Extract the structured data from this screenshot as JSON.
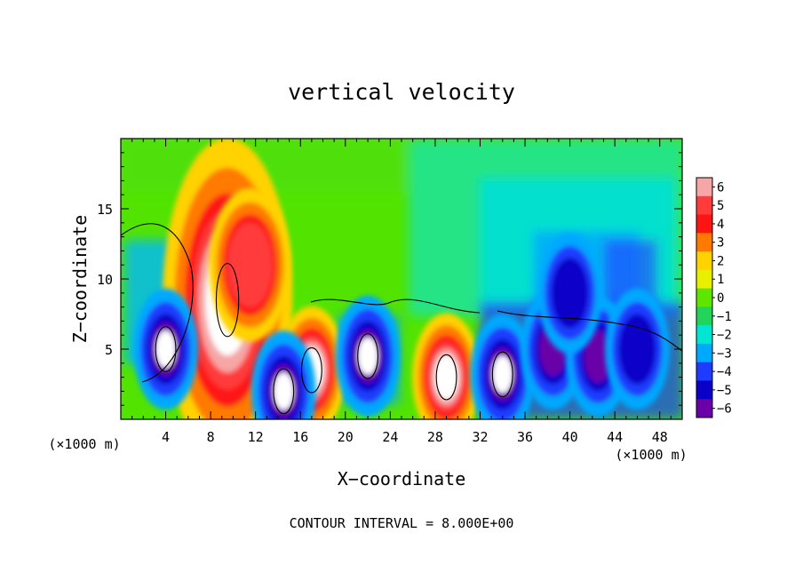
{
  "chart_data": {
    "type": "heatmap",
    "title": "vertical velocity",
    "xlabel": "X−coordinate",
    "ylabel": "Z−coordinate",
    "x_unit_left": "(×1000 m)",
    "x_unit_right": "(×1000 m)",
    "footer": "CONTOUR INTERVAL = 8.000E+00",
    "xlim": [
      0,
      50
    ],
    "ylim": [
      0,
      20
    ],
    "x_ticks": [
      4,
      8,
      12,
      16,
      20,
      24,
      28,
      32,
      36,
      40,
      44,
      48
    ],
    "x_tick_labels": [
      "4",
      "8",
      "12",
      "16",
      "20",
      "24",
      "28",
      "32",
      "36",
      "40",
      "44",
      "48"
    ],
    "y_ticks": [
      5,
      10,
      15
    ],
    "y_tick_labels": [
      "5",
      "10",
      "15"
    ],
    "colorbar": {
      "min": -6,
      "max": 6,
      "labels": [
        "6",
        "5",
        "4",
        "3",
        "2",
        "1",
        "0",
        "−1",
        "−2",
        "−3",
        "−4",
        "−5",
        "−6"
      ],
      "colors": [
        "#f6a6a6",
        "#ff3b3b",
        "#ff1414",
        "#ff7a00",
        "#ffd200",
        "#e8f000",
        "#5fe600",
        "#22d45a",
        "#00e6d2",
        "#00a8ff",
        "#1e3cff",
        "#0a00c8",
        "#6a00a8"
      ]
    },
    "features": [
      {
        "kind": "updraft",
        "x": 9.5,
        "z": 8.5,
        "w": 6.0,
        "note": "strong core"
      },
      {
        "kind": "updraft",
        "x": 11.5,
        "z": 11.0,
        "w": 4.0
      },
      {
        "kind": "updraft",
        "x": 17.0,
        "z": 3.5,
        "w": 6.0
      },
      {
        "kind": "updraft",
        "x": 29.0,
        "z": 3.0,
        "w": 6.0
      },
      {
        "kind": "downdraft",
        "x": 4.0,
        "z": 5.0,
        "w": -6.0
      },
      {
        "kind": "downdraft",
        "x": 14.5,
        "z": 2.0,
        "w": -6.0
      },
      {
        "kind": "downdraft",
        "x": 22.0,
        "z": 4.5,
        "w": -6.0
      },
      {
        "kind": "downdraft",
        "x": 34.0,
        "z": 3.2,
        "w": -6.0
      },
      {
        "kind": "downdraft",
        "x": 38.5,
        "z": 5.0,
        "w": -5.0
      },
      {
        "kind": "downdraft",
        "x": 42.5,
        "z": 4.5,
        "w": -5.0
      },
      {
        "kind": "downdraft",
        "x": 46.0,
        "z": 5.0,
        "w": -4.0
      },
      {
        "kind": "downdraft",
        "x": 40.0,
        "z": 9.0,
        "w": -3.0
      }
    ]
  }
}
